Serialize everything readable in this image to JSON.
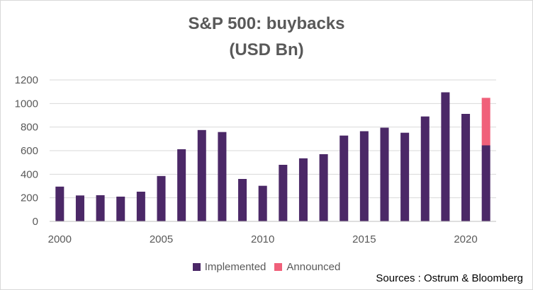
{
  "chart_data": {
    "type": "bar",
    "title": "S&P 500: buybacks",
    "subtitle": "(USD Bn)",
    "x": [
      2000,
      2001,
      2002,
      2003,
      2004,
      2005,
      2006,
      2007,
      2008,
      2009,
      2010,
      2011,
      2012,
      2013,
      2014,
      2015,
      2016,
      2017,
      2018,
      2019,
      2020,
      2021
    ],
    "x_tick_labels": [
      "2000",
      "2005",
      "2010",
      "2015",
      "2020"
    ],
    "y_tick_labels": [
      "0",
      "200",
      "400",
      "600",
      "800",
      "1000",
      "1200"
    ],
    "ylim": [
      0,
      1200
    ],
    "stacked": true,
    "grid": true,
    "legend_position": "bottom",
    "series": [
      {
        "name": "Implemented",
        "color": "#4b2867",
        "values": [
          295,
          220,
          222,
          210,
          252,
          385,
          612,
          775,
          758,
          360,
          302,
          480,
          535,
          570,
          728,
          765,
          795,
          752,
          890,
          1095,
          912,
          645
        ]
      },
      {
        "name": "Announced",
        "color": "#f0607a",
        "values": [
          0,
          0,
          0,
          0,
          0,
          0,
          0,
          0,
          0,
          0,
          0,
          0,
          0,
          0,
          0,
          0,
          0,
          0,
          0,
          0,
          0,
          403
        ]
      }
    ]
  },
  "source_note": "Sources : Ostrum & Bloomberg"
}
